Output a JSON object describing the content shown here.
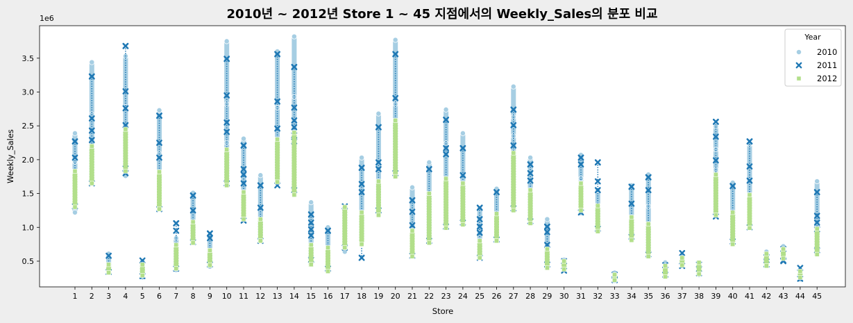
{
  "chart_data": {
    "type": "scatter",
    "title": "2010년 ~ 2012년 Store 1 ~ 45 지점에서의 Weekly_Sales의 분포 비교",
    "xlabel": "Store",
    "ylabel": "Weekly_Sales",
    "y_scale_label": "1e6",
    "ylim": [
      0.12,
      3.98
    ],
    "y_ticks": [
      "0.5",
      "1.0",
      "1.5",
      "2.0",
      "2.5",
      "3.0",
      "3.5"
    ],
    "categories": [
      "1",
      "2",
      "3",
      "4",
      "5",
      "6",
      "7",
      "8",
      "9",
      "10",
      "11",
      "12",
      "13",
      "14",
      "15",
      "16",
      "17",
      "18",
      "19",
      "20",
      "21",
      "22",
      "23",
      "24",
      "25",
      "26",
      "27",
      "28",
      "29",
      "30",
      "31",
      "32",
      "33",
      "34",
      "35",
      "36",
      "37",
      "38",
      "39",
      "40",
      "41",
      "42",
      "43",
      "44",
      "45"
    ],
    "legend": {
      "title": "Year",
      "position": "top-right"
    },
    "series": [
      {
        "name": "2010",
        "marker": "circle",
        "color": "#a6cee3",
        "min": [
          1.22,
          1.65,
          0.34,
          1.76,
          0.26,
          1.27,
          0.37,
          0.77,
          0.42,
          1.65,
          1.12,
          0.86,
          1.65,
          1.53,
          0.5,
          0.37,
          0.64,
          0.77,
          1.25,
          1.8,
          0.58,
          0.8,
          1.01,
          1.07,
          0.55,
          0.8,
          1.27,
          1.09,
          0.45,
          0.37,
          1.21,
          0.96,
          0.21,
          0.81,
          0.6,
          0.29,
          0.43,
          0.3,
          1.18,
          0.77,
          0.99,
          0.45,
          0.54,
          0.23,
          0.62
        ],
        "max": [
          2.39,
          3.44,
          0.61,
          3.53,
          0.5,
          2.73,
          0.84,
          1.51,
          0.89,
          3.75,
          2.31,
          1.77,
          3.6,
          3.82,
          1.37,
          1.0,
          1.3,
          2.03,
          2.68,
          3.77,
          1.59,
          1.96,
          2.74,
          2.39,
          1.28,
          1.57,
          3.08,
          2.03,
          1.12,
          0.52,
          2.07,
          1.55,
          0.33,
          1.62,
          1.78,
          0.48,
          0.57,
          0.48,
          2.49,
          1.66,
          2.23,
          0.64,
          0.72,
          0.37,
          1.68
        ],
        "outliers": [
          [
            1,
            2.39
          ],
          [
            1,
            1.97
          ],
          [
            2,
            3.44
          ],
          [
            2,
            2.67
          ],
          [
            4,
            3.53
          ],
          [
            4,
            2.78
          ],
          [
            6,
            2.73
          ],
          [
            6,
            2.09
          ],
          [
            10,
            3.75
          ],
          [
            10,
            2.82
          ],
          [
            10,
            2.25
          ],
          [
            11,
            2.31
          ],
          [
            12,
            1.77
          ],
          [
            13,
            3.6
          ],
          [
            13,
            2.77
          ],
          [
            14,
            3.82
          ],
          [
            14,
            2.93
          ],
          [
            15,
            1.37
          ],
          [
            16,
            1.0
          ],
          [
            18,
            2.03
          ],
          [
            19,
            2.68
          ],
          [
            20,
            3.77
          ],
          [
            20,
            2.82
          ],
          [
            21,
            1.59
          ],
          [
            22,
            1.96
          ],
          [
            23,
            2.74
          ],
          [
            23,
            2.24
          ],
          [
            24,
            2.39
          ],
          [
            25,
            1.28
          ],
          [
            26,
            1.57
          ],
          [
            27,
            3.08
          ],
          [
            27,
            2.63
          ],
          [
            27,
            2.35
          ],
          [
            28,
            2.03
          ],
          [
            29,
            1.12
          ],
          [
            30,
            0.52
          ],
          [
            31,
            2.07
          ],
          [
            31,
            1.72
          ],
          [
            32,
            1.55
          ],
          [
            34,
            1.62
          ],
          [
            35,
            1.78
          ],
          [
            35,
            1.31
          ],
          [
            39,
            2.49
          ],
          [
            39,
            2.15
          ],
          [
            39,
            1.85
          ],
          [
            40,
            1.66
          ],
          [
            41,
            2.23
          ],
          [
            45,
            1.68
          ]
        ]
      },
      {
        "name": "2011",
        "marker": "x",
        "color": "#1f78b4",
        "min": [
          1.31,
          1.65,
          0.34,
          1.8,
          0.28,
          1.27,
          0.39,
          0.78,
          0.45,
          1.65,
          1.1,
          0.8,
          1.62,
          1.55,
          0.52,
          0.39,
          0.7,
          0.55,
          1.25,
          1.8,
          0.58,
          0.8,
          1.01,
          1.07,
          0.55,
          0.82,
          1.28,
          1.09,
          0.45,
          0.36,
          1.22,
          0.98,
          0.22,
          0.86,
          0.6,
          0.3,
          0.43,
          0.32,
          1.16,
          0.79,
          1.0,
          0.45,
          0.5,
          0.24,
          0.66
        ],
        "max": [
          2.27,
          3.23,
          0.58,
          3.68,
          0.51,
          2.65,
          1.06,
          1.47,
          0.91,
          3.49,
          2.21,
          1.62,
          3.56,
          3.37,
          1.19,
          0.95,
          1.31,
          1.88,
          2.48,
          3.56,
          1.4,
          1.86,
          2.59,
          2.17,
          1.29,
          1.52,
          2.74,
          1.93,
          1.01,
          0.5,
          2.03,
          1.96,
          0.3,
          1.6,
          1.74,
          0.44,
          0.62,
          0.45,
          2.56,
          1.61,
          2.27,
          0.56,
          0.68,
          0.4,
          1.52
        ],
        "outliers": [
          [
            1,
            2.27
          ],
          [
            1,
            2.03
          ],
          [
            2,
            3.23
          ],
          [
            2,
            2.61
          ],
          [
            2,
            2.43
          ],
          [
            2,
            2.29
          ],
          [
            4,
            3.68
          ],
          [
            4,
            3.01
          ],
          [
            4,
            2.76
          ],
          [
            4,
            2.51
          ],
          [
            4,
            1.87
          ],
          [
            6,
            2.65
          ],
          [
            6,
            2.25
          ],
          [
            6,
            2.03
          ],
          [
            7,
            1.06
          ],
          [
            7,
            0.95
          ],
          [
            8,
            1.47
          ],
          [
            8,
            1.25
          ],
          [
            9,
            0.91
          ],
          [
            9,
            0.84
          ],
          [
            10,
            3.49
          ],
          [
            10,
            2.95
          ],
          [
            10,
            2.55
          ],
          [
            10,
            2.41
          ],
          [
            11,
            2.21
          ],
          [
            11,
            1.86
          ],
          [
            11,
            1.78
          ],
          [
            11,
            1.65
          ],
          [
            12,
            1.62
          ],
          [
            12,
            1.29
          ],
          [
            13,
            3.56
          ],
          [
            13,
            2.86
          ],
          [
            13,
            2.46
          ],
          [
            14,
            3.37
          ],
          [
            14,
            2.77
          ],
          [
            14,
            2.58
          ],
          [
            14,
            2.48
          ],
          [
            14,
            2.36
          ],
          [
            14,
            2.27
          ],
          [
            15,
            1.19
          ],
          [
            15,
            1.07
          ],
          [
            15,
            0.97
          ],
          [
            15,
            0.88
          ],
          [
            16,
            0.95
          ],
          [
            18,
            1.88
          ],
          [
            18,
            1.64
          ],
          [
            18,
            1.52
          ],
          [
            18,
            0.55
          ],
          [
            19,
            2.48
          ],
          [
            19,
            1.96
          ],
          [
            19,
            1.86
          ],
          [
            20,
            3.56
          ],
          [
            20,
            2.91
          ],
          [
            21,
            1.4
          ],
          [
            21,
            1.23
          ],
          [
            21,
            1.03
          ],
          [
            22,
            1.86
          ],
          [
            23,
            2.59
          ],
          [
            23,
            2.17
          ],
          [
            23,
            2.08
          ],
          [
            24,
            2.17
          ],
          [
            24,
            1.77
          ],
          [
            25,
            1.29
          ],
          [
            25,
            1.12
          ],
          [
            25,
            1.01
          ],
          [
            25,
            0.92
          ],
          [
            26,
            1.52
          ],
          [
            27,
            2.74
          ],
          [
            27,
            2.51
          ],
          [
            27,
            2.21
          ],
          [
            28,
            1.93
          ],
          [
            28,
            1.8
          ],
          [
            28,
            1.69
          ],
          [
            29,
            1.01
          ],
          [
            29,
            0.93
          ],
          [
            29,
            0.74
          ],
          [
            31,
            2.03
          ],
          [
            31,
            1.93
          ],
          [
            32,
            1.96
          ],
          [
            32,
            1.68
          ],
          [
            32,
            1.55
          ],
          [
            34,
            1.6
          ],
          [
            34,
            1.35
          ],
          [
            35,
            1.74
          ],
          [
            35,
            1.55
          ],
          [
            39,
            2.56
          ],
          [
            39,
            2.34
          ],
          [
            39,
            1.99
          ],
          [
            40,
            1.61
          ],
          [
            41,
            2.27
          ],
          [
            41,
            1.9
          ],
          [
            41,
            1.69
          ],
          [
            43,
            0.51
          ],
          [
            45,
            1.52
          ],
          [
            45,
            1.17
          ],
          [
            45,
            1.07
          ],
          [
            45,
            0.97
          ]
        ]
      },
      {
        "name": "2012",
        "marker": "square",
        "color": "#b2df8a",
        "min": [
          1.3,
          1.65,
          0.33,
          1.83,
          0.29,
          1.27,
          0.39,
          0.77,
          0.44,
          1.62,
          1.12,
          0.8,
          1.67,
          1.48,
          0.45,
          0.35,
          0.7,
          0.75,
          1.18,
          1.75,
          0.57,
          0.77,
          0.99,
          1.04,
          0.55,
          0.8,
          1.25,
          1.06,
          0.4,
          0.38,
          1.25,
          0.94,
          0.22,
          0.81,
          0.57,
          0.27,
          0.44,
          0.31,
          1.18,
          0.75,
          0.99,
          0.43,
          0.54,
          0.26,
          0.6
        ],
        "max": [
          1.83,
          2.2,
          0.45,
          2.45,
          0.45,
          1.82,
          0.74,
          1.08,
          0.66,
          2.15,
          1.52,
          1.12,
          2.3,
          2.4,
          0.74,
          0.7,
          1.3,
          1.22,
          1.68,
          2.58,
          0.95,
          1.5,
          1.72,
          1.65,
          0.8,
          1.2,
          2.1,
          1.55,
          0.68,
          0.5,
          1.65,
          1.32,
          0.3,
          1.15,
          1.05,
          0.43,
          0.55,
          0.48,
          1.78,
          1.22,
          1.48,
          0.61,
          0.68,
          0.35,
          0.98
        ],
        "outliers": []
      }
    ]
  }
}
